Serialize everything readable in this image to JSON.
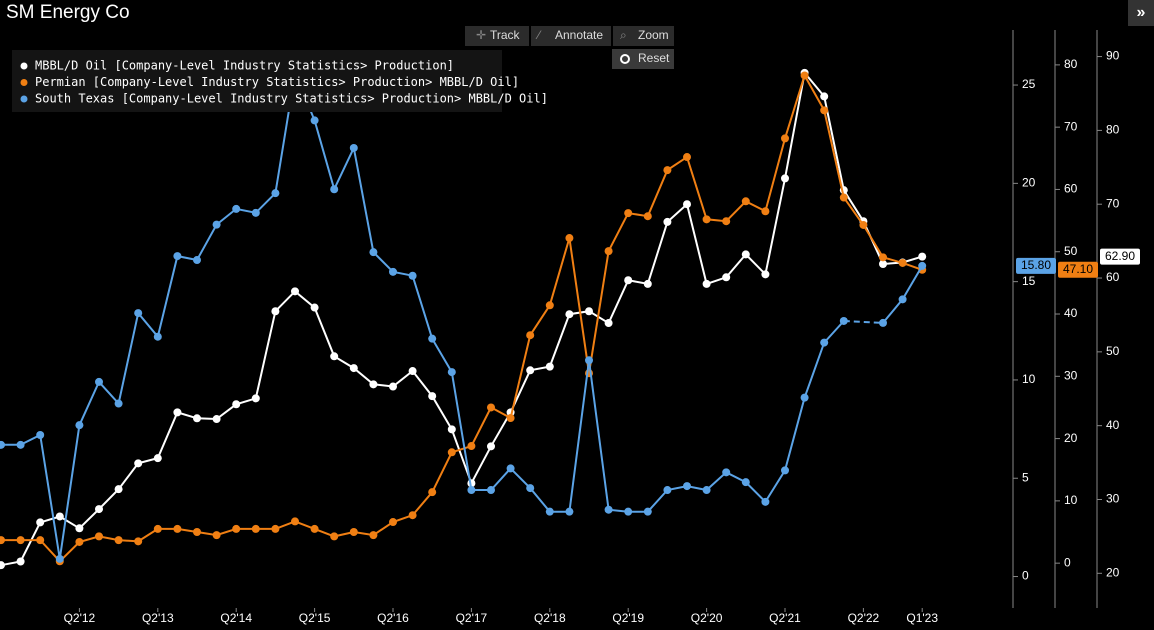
{
  "toolbar": {
    "track": "Track",
    "annotate": "Annotate",
    "zoom": "Zoom",
    "reset": "Reset",
    "expand": "»"
  },
  "chart_data": {
    "type": "line",
    "title": "SM Energy Co",
    "categories": [
      null,
      null,
      null,
      null,
      "Q2'12",
      null,
      null,
      null,
      "Q2'13",
      null,
      null,
      null,
      "Q2'14",
      null,
      null,
      null,
      "Q2'15",
      null,
      null,
      null,
      "Q2'16",
      null,
      null,
      null,
      "Q2'17",
      null,
      null,
      null,
      "Q2'18",
      null,
      null,
      null,
      "Q2'19",
      null,
      null,
      null,
      "Q2'20",
      null,
      null,
      null,
      "Q2'21",
      null,
      null,
      null,
      "Q2'22",
      null,
      null,
      "Q1'23"
    ],
    "series": [
      {
        "name": "MBBL/D Oil [Company-Level Industry Statistics> Production]",
        "color": "#ffffff",
        "axis": "y3",
        "values": [
          21.1,
          21.6,
          26.9,
          27.7,
          26.1,
          28.7,
          31.4,
          34.9,
          35.6,
          41.8,
          41.0,
          40.9,
          42.9,
          43.7,
          55.5,
          58.2,
          56.0,
          49.4,
          47.8,
          45.6,
          45.3,
          47.4,
          44.0,
          39.5,
          32.2,
          37.2,
          41.8,
          47.5,
          48.0,
          55.1,
          55.5,
          53.9,
          59.7,
          59.2,
          67.6,
          70.0,
          59.2,
          60.1,
          63.2,
          60.5,
          73.5,
          87.8,
          84.6,
          71.9,
          67.7,
          61.9,
          62.1,
          62.9
        ],
        "value_labels": [
          null,
          null,
          null,
          null,
          null,
          null,
          null,
          null,
          null,
          null,
          null,
          null,
          null,
          null,
          null,
          null,
          null,
          null,
          null,
          null,
          null,
          null,
          null,
          null,
          null,
          null,
          null,
          null,
          null,
          null,
          null,
          null,
          null,
          null,
          null,
          null,
          null,
          null,
          null,
          null,
          null,
          null,
          null,
          null,
          null,
          null,
          null,
          "62.90"
        ]
      },
      {
        "name": "Permian [Company-Level Industry Statistics> Production> MBBL/D Oil]",
        "color": "#f07f13",
        "axis": "y2",
        "values": [
          3.7,
          3.7,
          3.7,
          0.3,
          3.4,
          4.3,
          3.7,
          3.5,
          5.5,
          5.5,
          5.0,
          4.5,
          5.5,
          5.5,
          5.5,
          6.7,
          5.5,
          4.3,
          5.0,
          4.5,
          6.6,
          7.7,
          11.4,
          17.8,
          18.8,
          25.0,
          23.3,
          36.6,
          41.4,
          52.2,
          30.5,
          50.1,
          56.2,
          55.7,
          63.1,
          65.2,
          55.2,
          54.9,
          58.1,
          56.5,
          68.2,
          78.3,
          72.7,
          58.7,
          54.3,
          49.1,
          48.2,
          47.1
        ],
        "value_labels": [
          null,
          null,
          null,
          null,
          null,
          null,
          null,
          null,
          null,
          null,
          null,
          null,
          null,
          null,
          null,
          null,
          null,
          null,
          null,
          null,
          null,
          null,
          null,
          null,
          null,
          null,
          null,
          null,
          null,
          null,
          null,
          null,
          null,
          null,
          null,
          null,
          null,
          null,
          null,
          null,
          null,
          null,
          null,
          null,
          null,
          null,
          null,
          "47.10"
        ]
      },
      {
        "name": "South Texas [Company-Level Industry Statistics> Production> MBBL/D Oil]",
        "color": "#5ba3e6",
        "axis": "y",
        "values": [
          6.7,
          6.7,
          7.2,
          0.9,
          7.7,
          9.9,
          8.8,
          13.4,
          12.2,
          16.3,
          16.1,
          17.9,
          18.7,
          18.5,
          19.5,
          25.6,
          23.2,
          19.7,
          21.8,
          16.5,
          15.5,
          15.3,
          12.1,
          10.4,
          4.4,
          4.4,
          5.5,
          4.5,
          3.3,
          3.3,
          11.0,
          3.4,
          3.3,
          3.3,
          4.4,
          4.6,
          4.4,
          5.3,
          4.8,
          3.8,
          5.4,
          9.1,
          11.9,
          13.0,
          null,
          12.9,
          14.1,
          15.8
        ],
        "value_labels": [
          null,
          null,
          null,
          null,
          null,
          null,
          null,
          null,
          null,
          null,
          null,
          null,
          null,
          null,
          null,
          null,
          null,
          null,
          null,
          null,
          null,
          null,
          null,
          null,
          null,
          null,
          null,
          null,
          null,
          null,
          null,
          null,
          null,
          null,
          null,
          null,
          null,
          null,
          null,
          null,
          null,
          null,
          null,
          null,
          null,
          null,
          null,
          "15.80"
        ]
      }
    ],
    "ylim": [
      -1.6,
      27.8
    ],
    "yticks": [
      0,
      5,
      10,
      15,
      20,
      25
    ],
    "y2lim": [
      -7.2,
      85.6
    ],
    "y2ticks": [
      0,
      10,
      20,
      30,
      40,
      50,
      60,
      70,
      80
    ],
    "y3lim": [
      15.3,
      93.6
    ],
    "y3ticks": [
      20,
      30,
      40,
      50,
      60,
      70,
      80,
      90
    ],
    "legend": "top-left",
    "markers": true
  }
}
